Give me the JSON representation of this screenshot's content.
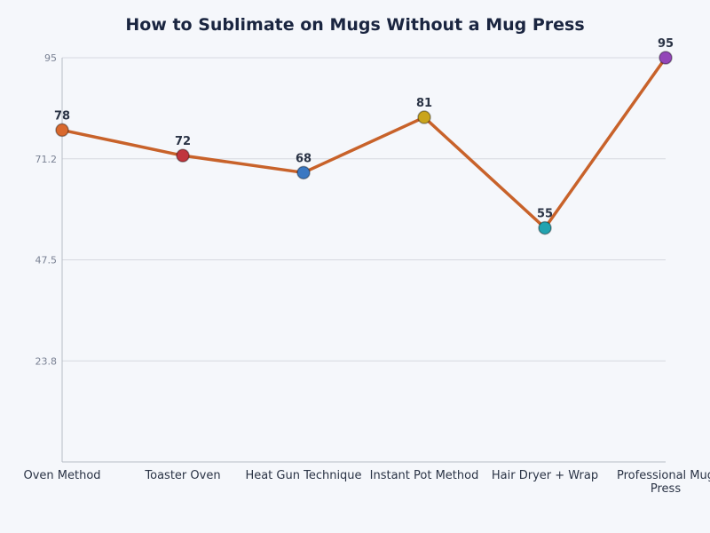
{
  "chart_data": {
    "type": "line",
    "title": "How to Sublimate on Mugs Without a Mug Press",
    "xlabel": "",
    "ylabel": "",
    "categories": [
      "Oven Method",
      "Toaster Oven",
      "Heat Gun Technique",
      "Instant Pot Method",
      "Hair Dryer + Wrap",
      "Professional Mug Press"
    ],
    "values": [
      78,
      72,
      68,
      81,
      55,
      95
    ],
    "data_labels": [
      "78",
      "72",
      "68",
      "81",
      "55",
      "95"
    ],
    "ylim": [
      0,
      95
    ],
    "yticks": [
      "23.8",
      "47.5",
      "71.2",
      "95"
    ],
    "ytick_values": [
      23.75,
      47.5,
      71.25,
      95
    ],
    "grid": true,
    "legend": "none",
    "line_color": "#c8622a",
    "marker_colors": [
      "#d9692e",
      "#c0353d",
      "#3a78c2",
      "#c9a41c",
      "#22a3b0",
      "#9346b8"
    ]
  }
}
